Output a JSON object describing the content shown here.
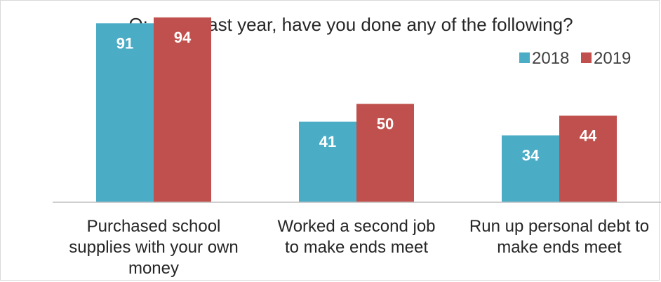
{
  "chart_data": {
    "type": "bar",
    "title": "Q: In the last year, have you done any of the following?",
    "categories": [
      [
        "Purchased school",
        "supplies with your own",
        "money"
      ],
      [
        "Worked a second job",
        "to make ends meet"
      ],
      [
        "Run up personal debt to",
        "make ends meet"
      ]
    ],
    "series": [
      {
        "name": "2018",
        "color": "#4bacc6",
        "values": [
          91,
          41,
          34
        ]
      },
      {
        "name": "2019",
        "color": "#c0504d",
        "values": [
          94,
          50,
          44
        ]
      }
    ],
    "ylim": [
      0,
      100
    ],
    "grid": false,
    "legend": "top-right",
    "xlabel": "",
    "ylabel": ""
  }
}
